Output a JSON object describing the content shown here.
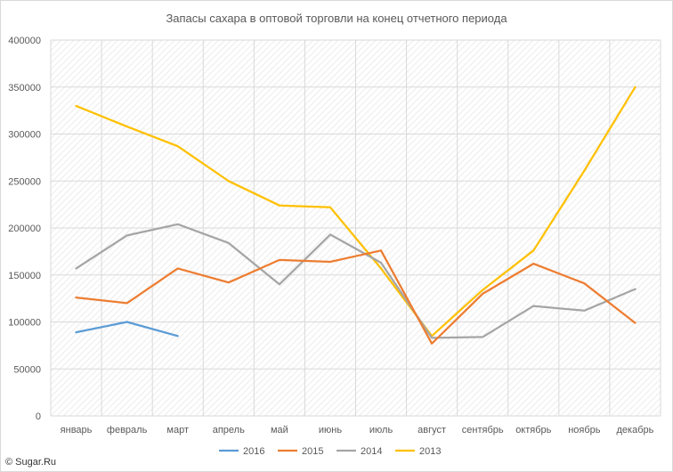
{
  "chart_data": {
    "type": "line",
    "title": "Запасы сахара в оптовой торговли на конец отчетного периода",
    "categories": [
      "январь",
      "февраль",
      "март",
      "апрель",
      "май",
      "июнь",
      "июль",
      "август",
      "сентябрь",
      "октябрь",
      "ноябрь",
      "декабрь"
    ],
    "ylim": [
      0,
      400000
    ],
    "yticks": [
      "0",
      "50000",
      "100000",
      "150000",
      "200000",
      "250000",
      "300000",
      "350000",
      "400000"
    ],
    "yticks_values": [
      0,
      50000,
      100000,
      150000,
      200000,
      250000,
      300000,
      350000,
      400000
    ],
    "grid": true,
    "legend_position": "bottom",
    "series": [
      {
        "name": "2016",
        "color": "#5b9bd5",
        "values": [
          89000,
          100000,
          85000,
          null,
          null,
          null,
          null,
          null,
          null,
          null,
          null,
          null
        ]
      },
      {
        "name": "2015",
        "color": "#ed7d31",
        "values": [
          126000,
          120000,
          157000,
          142000,
          166000,
          164000,
          176000,
          77000,
          130000,
          162000,
          141000,
          99000
        ]
      },
      {
        "name": "2014",
        "color": "#a5a5a5",
        "values": [
          157000,
          192000,
          204000,
          184000,
          140000,
          193000,
          163000,
          83000,
          84000,
          117000,
          112000,
          135000
        ]
      },
      {
        "name": "2013",
        "color": "#ffc000",
        "values": [
          330000,
          308000,
          287000,
          250000,
          224000,
          222000,
          157000,
          85000,
          134000,
          176000,
          261000,
          350000
        ]
      }
    ]
  },
  "watermark": "© Sugar.Ru"
}
